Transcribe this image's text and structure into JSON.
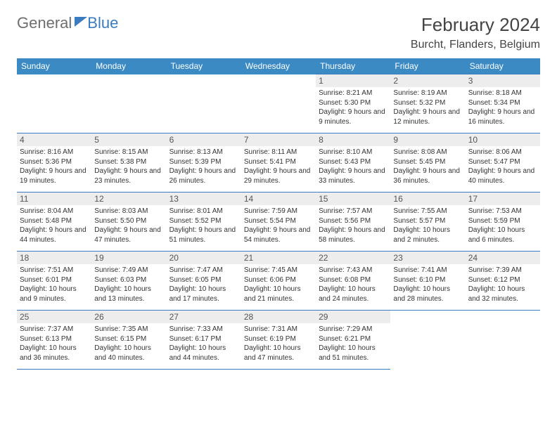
{
  "brand": {
    "part1": "General",
    "part2": "Blue"
  },
  "title": "February 2024",
  "location": "Burcht, Flanders, Belgium",
  "colors": {
    "header_bg": "#3b8ac4",
    "border": "#3b7bbf",
    "daynum_bg": "#ededed",
    "text": "#333333",
    "title": "#444444"
  },
  "dow": [
    "Sunday",
    "Monday",
    "Tuesday",
    "Wednesday",
    "Thursday",
    "Friday",
    "Saturday"
  ],
  "weeks": [
    [
      null,
      null,
      null,
      null,
      {
        "n": "1",
        "sr": "8:21 AM",
        "ss": "5:30 PM",
        "dl": "9 hours and 9 minutes."
      },
      {
        "n": "2",
        "sr": "8:19 AM",
        "ss": "5:32 PM",
        "dl": "9 hours and 12 minutes."
      },
      {
        "n": "3",
        "sr": "8:18 AM",
        "ss": "5:34 PM",
        "dl": "9 hours and 16 minutes."
      }
    ],
    [
      {
        "n": "4",
        "sr": "8:16 AM",
        "ss": "5:36 PM",
        "dl": "9 hours and 19 minutes."
      },
      {
        "n": "5",
        "sr": "8:15 AM",
        "ss": "5:38 PM",
        "dl": "9 hours and 23 minutes."
      },
      {
        "n": "6",
        "sr": "8:13 AM",
        "ss": "5:39 PM",
        "dl": "9 hours and 26 minutes."
      },
      {
        "n": "7",
        "sr": "8:11 AM",
        "ss": "5:41 PM",
        "dl": "9 hours and 29 minutes."
      },
      {
        "n": "8",
        "sr": "8:10 AM",
        "ss": "5:43 PM",
        "dl": "9 hours and 33 minutes."
      },
      {
        "n": "9",
        "sr": "8:08 AM",
        "ss": "5:45 PM",
        "dl": "9 hours and 36 minutes."
      },
      {
        "n": "10",
        "sr": "8:06 AM",
        "ss": "5:47 PM",
        "dl": "9 hours and 40 minutes."
      }
    ],
    [
      {
        "n": "11",
        "sr": "8:04 AM",
        "ss": "5:48 PM",
        "dl": "9 hours and 44 minutes."
      },
      {
        "n": "12",
        "sr": "8:03 AM",
        "ss": "5:50 PM",
        "dl": "9 hours and 47 minutes."
      },
      {
        "n": "13",
        "sr": "8:01 AM",
        "ss": "5:52 PM",
        "dl": "9 hours and 51 minutes."
      },
      {
        "n": "14",
        "sr": "7:59 AM",
        "ss": "5:54 PM",
        "dl": "9 hours and 54 minutes."
      },
      {
        "n": "15",
        "sr": "7:57 AM",
        "ss": "5:56 PM",
        "dl": "9 hours and 58 minutes."
      },
      {
        "n": "16",
        "sr": "7:55 AM",
        "ss": "5:57 PM",
        "dl": "10 hours and 2 minutes."
      },
      {
        "n": "17",
        "sr": "7:53 AM",
        "ss": "5:59 PM",
        "dl": "10 hours and 6 minutes."
      }
    ],
    [
      {
        "n": "18",
        "sr": "7:51 AM",
        "ss": "6:01 PM",
        "dl": "10 hours and 9 minutes."
      },
      {
        "n": "19",
        "sr": "7:49 AM",
        "ss": "6:03 PM",
        "dl": "10 hours and 13 minutes."
      },
      {
        "n": "20",
        "sr": "7:47 AM",
        "ss": "6:05 PM",
        "dl": "10 hours and 17 minutes."
      },
      {
        "n": "21",
        "sr": "7:45 AM",
        "ss": "6:06 PM",
        "dl": "10 hours and 21 minutes."
      },
      {
        "n": "22",
        "sr": "7:43 AM",
        "ss": "6:08 PM",
        "dl": "10 hours and 24 minutes."
      },
      {
        "n": "23",
        "sr": "7:41 AM",
        "ss": "6:10 PM",
        "dl": "10 hours and 28 minutes."
      },
      {
        "n": "24",
        "sr": "7:39 AM",
        "ss": "6:12 PM",
        "dl": "10 hours and 32 minutes."
      }
    ],
    [
      {
        "n": "25",
        "sr": "7:37 AM",
        "ss": "6:13 PM",
        "dl": "10 hours and 36 minutes."
      },
      {
        "n": "26",
        "sr": "7:35 AM",
        "ss": "6:15 PM",
        "dl": "10 hours and 40 minutes."
      },
      {
        "n": "27",
        "sr": "7:33 AM",
        "ss": "6:17 PM",
        "dl": "10 hours and 44 minutes."
      },
      {
        "n": "28",
        "sr": "7:31 AM",
        "ss": "6:19 PM",
        "dl": "10 hours and 47 minutes."
      },
      {
        "n": "29",
        "sr": "7:29 AM",
        "ss": "6:21 PM",
        "dl": "10 hours and 51 minutes."
      },
      null,
      null
    ]
  ],
  "labels": {
    "sunrise": "Sunrise:",
    "sunset": "Sunset:",
    "daylight": "Daylight:"
  }
}
